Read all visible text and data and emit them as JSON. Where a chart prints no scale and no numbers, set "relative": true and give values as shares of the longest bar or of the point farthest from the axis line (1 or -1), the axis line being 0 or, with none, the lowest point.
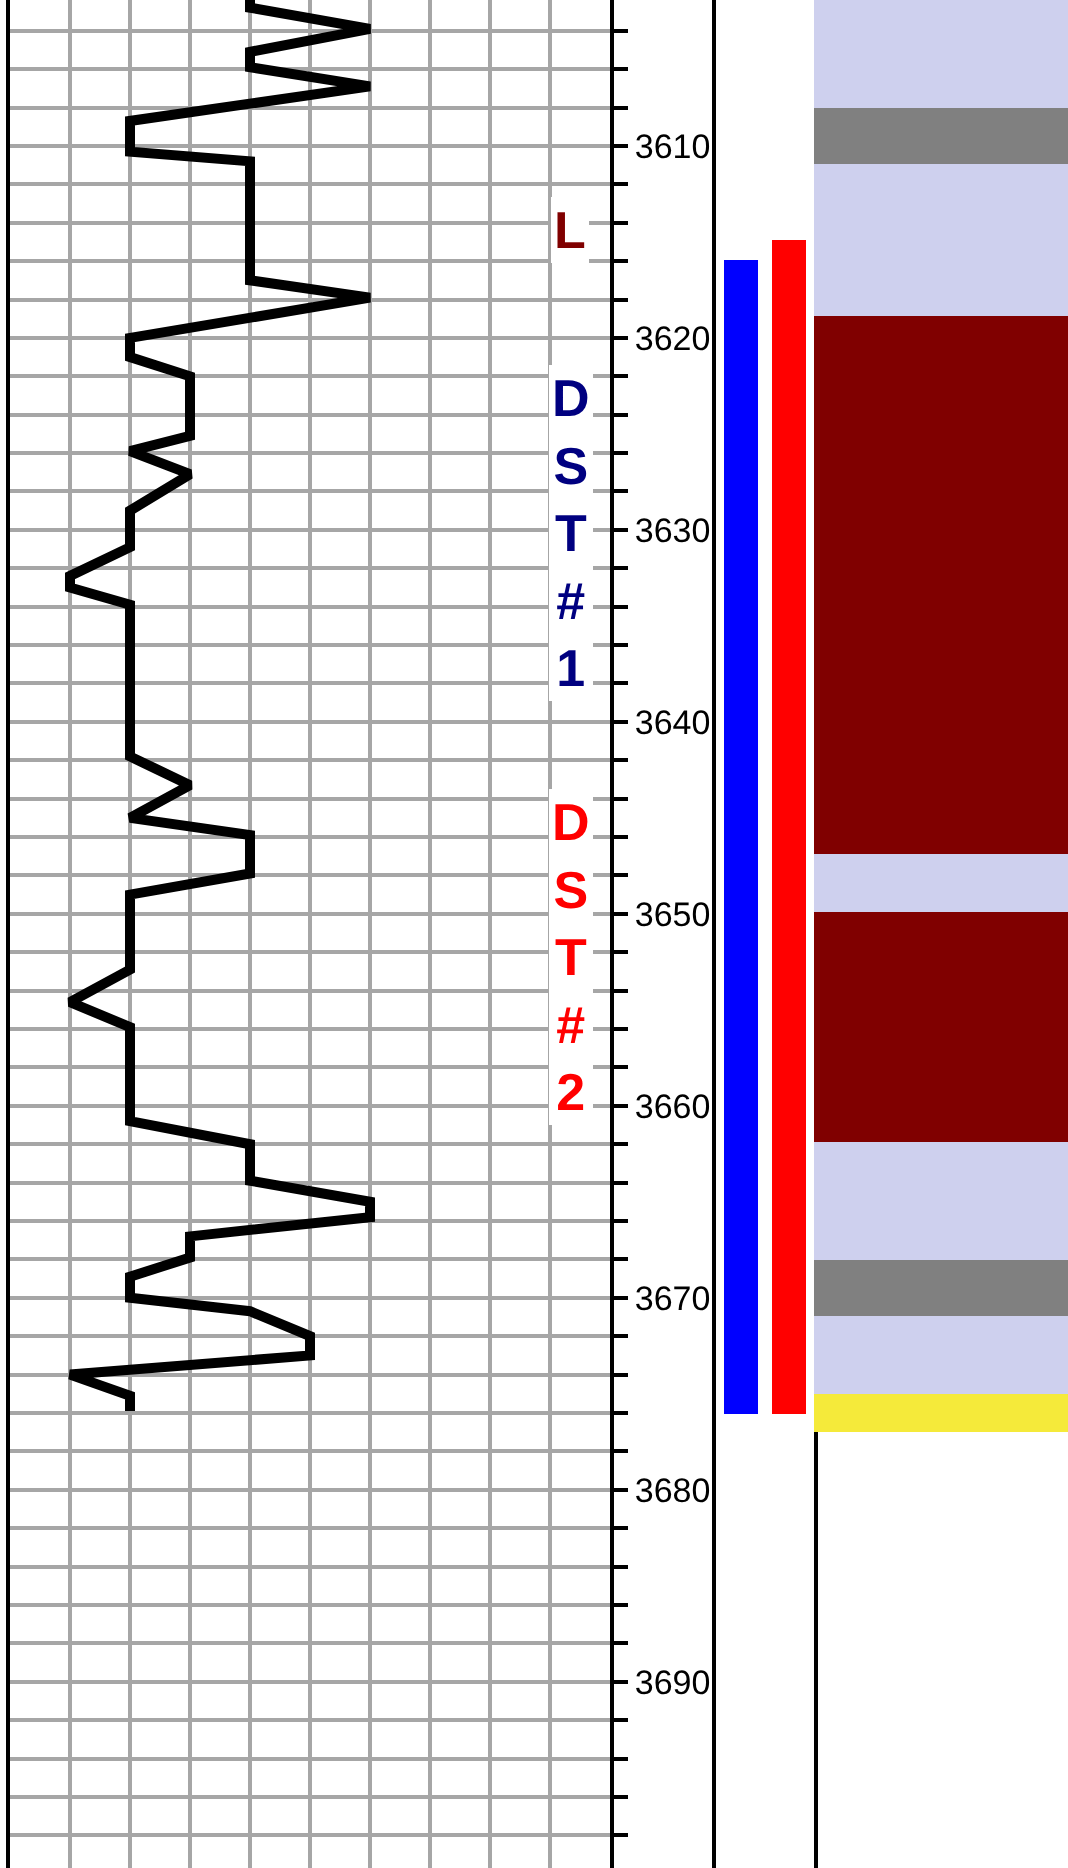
{
  "chart_data": [
    {
      "type": "line",
      "orientation": "horizontal",
      "relative": true,
      "grid": true,
      "tick_labels": "y",
      "x": [
        3602.4,
        3602.8,
        3603.9,
        3605.1,
        3605.9,
        3606.9,
        3608.7,
        3610.3,
        3610.8,
        3617.0,
        3617.9,
        3620.0,
        3621.0,
        3622.0,
        3625.1,
        3625.9,
        3627.1,
        3629.0,
        3630.9,
        3632.4,
        3633.0,
        3633.9,
        3641.8,
        3643.3,
        3645.0,
        3645.9,
        3647.9,
        3649.0,
        3652.9,
        3654.6,
        3655.9,
        3660.8,
        3662.0,
        3663.9,
        3665.0,
        3665.8,
        3666.8,
        3667.9,
        3668.9,
        3670.0,
        3670.7,
        3672.0,
        3673.0,
        3674.0,
        3675.1,
        3675.9
      ],
      "series": [
        {
          "color": "#000000",
          "values": [
            0.6,
            0.6,
            1,
            0.6,
            0.6,
            1,
            0.2,
            0.2,
            0.6,
            0.6,
            1,
            0.2,
            0.2,
            0.4,
            0.4,
            0.2,
            0.4,
            0.2,
            0.2,
            0,
            0,
            0.2,
            0.2,
            0.4,
            0.2,
            0.6,
            0.6,
            0.2,
            0.2,
            0,
            0.2,
            0.2,
            0.6,
            0.6,
            1,
            1,
            0.4,
            0.4,
            0.2,
            0.2,
            0.6,
            0.8,
            0.8,
            0,
            0.2,
            0.2
          ]
        }
      ],
      "ylim": [
        3699.7,
        3602.4
      ],
      "yticks": [
        {
          "value": 3604,
          "label": null
        },
        {
          "value": 3606,
          "label": null
        },
        {
          "value": 3608,
          "label": null
        },
        3610,
        {
          "value": 3612,
          "label": null
        },
        {
          "value": 3614,
          "label": null
        },
        {
          "value": 3616,
          "label": null
        },
        {
          "value": 3618,
          "label": null
        },
        3620,
        {
          "value": 3622,
          "label": null
        },
        {
          "value": 3624,
          "label": null
        },
        {
          "value": 3626,
          "label": null
        },
        {
          "value": 3628,
          "label": null
        },
        3630,
        {
          "value": 3632,
          "label": null
        },
        {
          "value": 3634,
          "label": null
        },
        {
          "value": 3636,
          "label": null
        },
        {
          "value": 3638,
          "label": null
        },
        3640,
        {
          "value": 3642,
          "label": null
        },
        {
          "value": 3644,
          "label": null
        },
        {
          "value": 3646,
          "label": null
        },
        {
          "value": 3648,
          "label": null
        },
        3650,
        {
          "value": 3652,
          "label": null
        },
        {
          "value": 3654,
          "label": null
        },
        {
          "value": 3656,
          "label": null
        },
        {
          "value": 3658,
          "label": null
        },
        3660,
        {
          "value": 3662,
          "label": null
        },
        {
          "value": 3664,
          "label": null
        },
        {
          "value": 3666,
          "label": null
        },
        {
          "value": 3668,
          "label": null
        },
        3670,
        {
          "value": 3672,
          "label": null
        },
        {
          "value": 3674,
          "label": null
        },
        {
          "value": 3676,
          "label": null
        },
        {
          "value": 3678,
          "label": null
        },
        3680,
        {
          "value": 3682,
          "label": null
        },
        {
          "value": 3684,
          "label": null
        },
        {
          "value": 3686,
          "label": null
        },
        {
          "value": 3688,
          "label": null
        },
        3690,
        {
          "value": 3692,
          "label": null
        },
        {
          "value": 3694,
          "label": null
        },
        {
          "value": 3696,
          "label": null
        },
        {
          "value": 3698,
          "label": null
        }
      ],
      "annotations": [
        "L",
        "DST #1",
        "DST #2"
      ]
    },
    {
      "type": "bar",
      "tick_labels": false,
      "categories": [
        null,
        null
      ],
      "base": [
        3615.9,
        3614.9
      ],
      "values": [
        60.2,
        61.2
      ],
      "colors": [
        "#0000ff",
        "#ff0000"
      ],
      "ylim": [
        3699.7,
        3602.4
      ]
    },
    {
      "type": "bar",
      "tick_labels": false,
      "categories": [
        null
      ],
      "ylim": [
        3699.7,
        3602.4
      ],
      "series": [
        {
          "color": "#ced0ee",
          "base": [
            3602.4
          ],
          "values": [
            5.6
          ]
        },
        {
          "color": "#808080",
          "base": [
            3608.0
          ],
          "values": [
            2.9
          ]
        },
        {
          "color": "#ced0ee",
          "base": [
            3610.9
          ],
          "values": [
            8.0
          ]
        },
        {
          "color": "#800000",
          "base": [
            3618.9
          ],
          "values": [
            28.0
          ]
        },
        {
          "color": "#ced0ee",
          "base": [
            3646.9
          ],
          "values": [
            3.0
          ]
        },
        {
          "color": "#800000",
          "base": [
            3649.9
          ],
          "values": [
            12.0
          ]
        },
        {
          "color": "#ced0ee",
          "base": [
            3661.9
          ],
          "values": [
            6.1
          ]
        },
        {
          "color": "#808080",
          "base": [
            3668.0
          ],
          "values": [
            2.9
          ]
        },
        {
          "color": "#ced0ee",
          "base": [
            3670.9
          ],
          "values": [
            4.1
          ]
        },
        {
          "color": "#f5ea3a",
          "base": [
            3675.0
          ],
          "values": [
            2.0
          ]
        }
      ]
    }
  ]
}
